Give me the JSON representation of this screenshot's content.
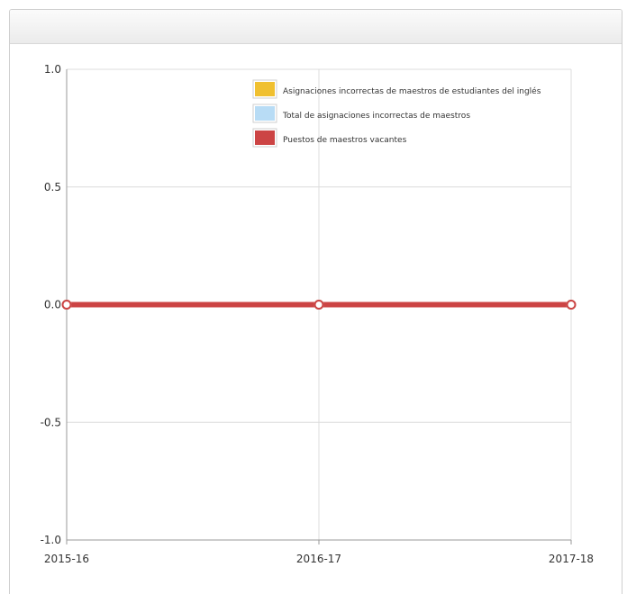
{
  "chart_data": {
    "type": "line",
    "title": "",
    "xlabel": "",
    "ylabel": "",
    "categories": [
      "2015-16",
      "2016-17",
      "2017-18"
    ],
    "ylim": [
      -1.0,
      1.0
    ],
    "yticks": [
      "1.0",
      "0.5",
      "0.0",
      "-0.5",
      "-1.0"
    ],
    "ytick_values": [
      1.0,
      0.5,
      0.0,
      -0.5,
      -1.0
    ],
    "grid": true,
    "legend_position": "top-right",
    "series": [
      {
        "name": "Asignaciones incorrectas de maestros de estudiantes del inglés",
        "values": [
          0,
          0,
          0
        ],
        "color": "#f0c030"
      },
      {
        "name": "Total de asignaciones incorrectas de maestros",
        "values": [
          0,
          0,
          0
        ],
        "color": "#b8dcf5"
      },
      {
        "name": "Puestos de maestros vacantes",
        "values": [
          0,
          0,
          0
        ],
        "color": "#cc4444"
      }
    ]
  }
}
